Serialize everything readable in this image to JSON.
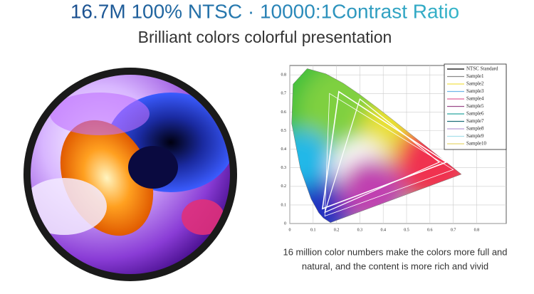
{
  "header": {
    "title": "16.7M 100% NTSC · 10000:1Contrast Ratio",
    "subtitle": "Brilliant colors colorful presentation"
  },
  "gamut_chart": {
    "xticks": [
      0,
      0.1,
      0.2,
      0.3,
      0.4,
      0.5,
      0.6,
      0.7,
      0.8
    ],
    "yticks": [
      0,
      0.1,
      0.2,
      0.3,
      0.4,
      0.5,
      0.6,
      0.7,
      0.8
    ],
    "legend": [
      {
        "name": "NTSC Standard",
        "color": "#000000"
      },
      {
        "name": "Sample1",
        "color": "#888888"
      },
      {
        "name": "Sample2",
        "color": "#f2e24a"
      },
      {
        "name": "Sample3",
        "color": "#6fb6e8"
      },
      {
        "name": "Sample4",
        "color": "#e0609a"
      },
      {
        "name": "Sample5",
        "color": "#9b4a8a"
      },
      {
        "name": "Sample6",
        "color": "#2aa8a0"
      },
      {
        "name": "Sample7",
        "color": "#1f6f7a"
      },
      {
        "name": "Sample8",
        "color": "#b99ad8"
      },
      {
        "name": "Sample9",
        "color": "#a8e0ec"
      },
      {
        "name": "Sample10",
        "color": "#e8d870"
      }
    ]
  },
  "caption": {
    "lines": [
      "16 million color numbers make the colors more full and",
      "natural, and the content is more rich and vivid"
    ]
  }
}
